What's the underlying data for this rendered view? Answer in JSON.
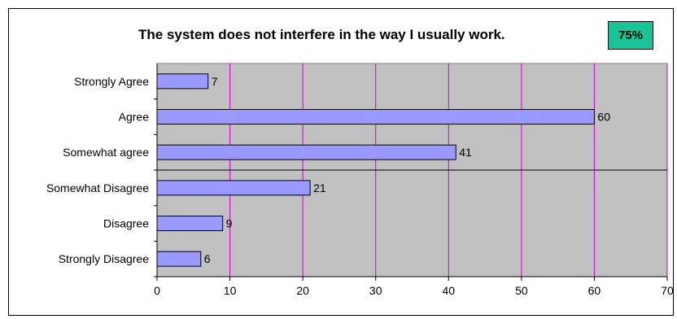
{
  "badge": "75%",
  "chart_data": {
    "type": "bar",
    "orientation": "horizontal",
    "title": "The system does not interfere in the way I usually work.",
    "categories": [
      "Strongly Agree",
      "Agree",
      "Somewhat agree",
      "Somewhat Disagree",
      "Disagree",
      "Strongly Disagree"
    ],
    "values": [
      7,
      60,
      41,
      21,
      9,
      6
    ],
    "xlim": [
      0,
      70
    ],
    "xticks": [
      0,
      10,
      20,
      30,
      40,
      50,
      60,
      70
    ],
    "xlabel": "",
    "ylabel": "",
    "grid": "vertical",
    "legend": "none",
    "divider_after_category": "Somewhat agree",
    "colors": {
      "plot_background": "#c0c0c0",
      "bar_fill": "#9999ff",
      "gridline": "#cc00cc",
      "badge": "#19c596"
    }
  }
}
